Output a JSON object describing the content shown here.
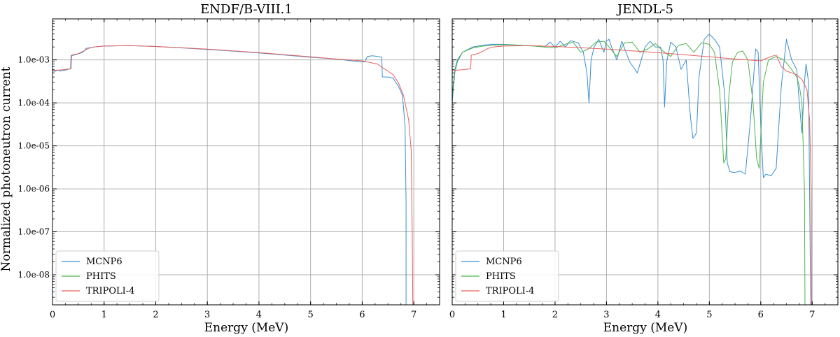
{
  "figure": {
    "ylabel": "Normalized photoneutron current",
    "xlabel": "Energy (MeV)"
  },
  "chart_data": [
    {
      "type": "line",
      "title": "ENDF/B-VIII.1",
      "xlabel": "Energy (MeV)",
      "ylabel": "Normalized photoneutron current",
      "xlim": [
        0,
        7.5
      ],
      "ylim": [
        2e-09,
        0.009
      ],
      "yscale": "log",
      "grid": true,
      "legend_position": "bottom-left",
      "xticks": [
        0,
        1,
        2,
        3,
        4,
        5,
        6,
        7
      ],
      "xtick_labels": [
        "0",
        "1",
        "2",
        "3",
        "4",
        "5",
        "6",
        "7"
      ],
      "yticks": [
        1e-08,
        1e-07,
        1e-06,
        1e-05,
        0.0001,
        0.001
      ],
      "ytick_labels": [
        "1.0e-08",
        "1.0e-07",
        "1.0e-06",
        "1.0e-05",
        "1.0e-04",
        "1.0e-03"
      ],
      "series": [
        {
          "name": "MCNP6",
          "color": "#3a8fd0",
          "x": [
            0,
            0.05,
            0.1,
            0.15,
            0.2,
            0.25,
            0.3,
            0.35,
            0.36,
            0.45,
            0.55,
            0.6,
            0.65,
            0.8,
            1.0,
            1.5,
            2.0,
            2.5,
            3.0,
            3.5,
            4.0,
            4.5,
            5.0,
            5.5,
            5.95,
            6.05,
            6.1,
            6.2,
            6.3,
            6.38,
            6.39,
            6.5,
            6.6,
            6.65,
            6.7,
            6.78,
            6.83,
            6.85,
            6.85
          ],
          "y": [
            0.00056,
            0.00054,
            0.00058,
            0.00055,
            0.00057,
            0.00058,
            0.0006,
            0.00062,
            0.00125,
            0.00132,
            0.00145,
            0.00155,
            0.00185,
            0.002,
            0.0021,
            0.00215,
            0.00205,
            0.0019,
            0.00175,
            0.0016,
            0.00145,
            0.0013,
            0.00115,
            0.00105,
            0.0009,
            0.0009,
            0.0012,
            0.00125,
            0.0012,
            0.00115,
            0.0004,
            0.0004,
            0.00038,
            0.0003,
            0.00025,
            0.00015,
            3e-05,
            5e-07,
            2e-09
          ]
        },
        {
          "name": "PHITS",
          "color": "#4db34d",
          "x": [],
          "y": []
        },
        {
          "name": "TRIPOLI-4",
          "color": "#e8605f",
          "x": [
            0,
            0.1,
            0.2,
            0.3,
            0.36,
            0.37,
            0.5,
            0.6,
            0.7,
            0.8,
            1.0,
            1.5,
            2.0,
            2.5,
            3.0,
            3.5,
            4.0,
            4.5,
            5.0,
            5.5,
            6.0,
            6.3,
            6.4,
            6.5,
            6.6,
            6.7,
            6.8,
            6.9,
            6.95,
            6.97,
            6.98
          ],
          "y": [
            0.00057,
            0.00058,
            0.00059,
            0.00061,
            0.00062,
            0.0013,
            0.0014,
            0.0016,
            0.00185,
            0.002,
            0.0021,
            0.00215,
            0.00205,
            0.00192,
            0.00178,
            0.00162,
            0.00148,
            0.00132,
            0.00118,
            0.00105,
            0.00095,
            0.0008,
            0.00065,
            0.00055,
            0.00045,
            0.0003,
            0.00015,
            4e-05,
            8e-06,
            1e-07,
            2e-09
          ]
        }
      ]
    },
    {
      "type": "line",
      "title": "JENDL-5",
      "xlabel": "Energy (MeV)",
      "ylabel": "",
      "xlim": [
        0,
        7.5
      ],
      "ylim": [
        2e-09,
        0.009
      ],
      "yscale": "log",
      "grid": true,
      "legend_position": "bottom-left",
      "xticks": [
        0,
        1,
        2,
        3,
        4,
        5,
        6,
        7
      ],
      "xtick_labels": [
        "0",
        "1",
        "2",
        "3",
        "4",
        "5",
        "6",
        "7"
      ],
      "yticks": [
        1e-08,
        1e-07,
        1e-06,
        1e-05,
        0.0001,
        0.001
      ],
      "ytick_labels": [
        "",
        "",
        "",
        "",
        "",
        ""
      ],
      "series": [
        {
          "name": "MCNP6",
          "color": "#3a8fd0",
          "x": [
            0,
            0.05,
            0.1,
            0.2,
            0.4,
            0.6,
            0.8,
            1.0,
            1.3,
            1.6,
            1.8,
            1.9,
            2.0,
            2.1,
            2.2,
            2.3,
            2.45,
            2.55,
            2.62,
            2.66,
            2.7,
            2.76,
            2.85,
            2.95,
            3.0,
            3.05,
            3.1,
            3.2,
            3.3,
            3.45,
            3.6,
            3.75,
            3.85,
            3.95,
            4.05,
            4.1,
            4.13,
            4.17,
            4.25,
            4.35,
            4.45,
            4.55,
            4.63,
            4.68,
            4.7,
            4.75,
            4.8,
            4.9,
            5.0,
            5.1,
            5.2,
            5.3,
            5.35,
            5.4,
            5.5,
            5.6,
            5.7,
            5.8,
            5.9,
            5.95,
            6.0,
            6.05,
            6.1,
            6.2,
            6.3,
            6.4,
            6.5,
            6.6,
            6.7,
            6.75,
            6.8,
            6.85,
            6.88,
            6.93,
            6.97
          ],
          "y": [
            0.0001,
            0.0005,
            0.0009,
            0.0015,
            0.002,
            0.0022,
            0.0023,
            0.0023,
            0.0022,
            0.0021,
            0.002,
            0.0026,
            0.002,
            0.0027,
            0.002,
            0.0028,
            0.0025,
            0.0015,
            0.0005,
            0.0001,
            0.001,
            0.002,
            0.003,
            0.0015,
            0.0028,
            0.003,
            0.002,
            0.001,
            0.0027,
            0.0009,
            0.0005,
            0.002,
            0.0027,
            0.002,
            0.002,
            0.001,
            8e-05,
            0.0009,
            0.0026,
            0.002,
            0.0006,
            0.001,
            5e-05,
            1.5e-05,
            1.6e-05,
            2e-05,
            0.0004,
            0.003,
            0.004,
            0.003,
            0.002,
            0.00015,
            4e-06,
            2.5e-06,
            2.4e-06,
            2.6e-06,
            2.2e-06,
            4e-05,
            0.0018,
            0.0015,
            3e-05,
            1.8e-06,
            2.2e-06,
            2e-06,
            3e-06,
            0.00025,
            0.003,
            0.001,
            0.0006,
            0.0001,
            2e-05,
            0.0003,
            0.0008,
            0.0003,
            2e-09
          ]
        },
        {
          "name": "PHITS",
          "color": "#4db34d",
          "x": [
            0,
            0.05,
            0.1,
            0.2,
            0.4,
            0.6,
            0.8,
            1.0,
            1.3,
            1.6,
            1.8,
            2.0,
            2.2,
            2.35,
            2.5,
            2.65,
            2.8,
            2.95,
            3.05,
            3.2,
            3.35,
            3.5,
            3.65,
            3.8,
            3.95,
            4.1,
            4.25,
            4.4,
            4.55,
            4.7,
            4.85,
            5.0,
            5.1,
            5.2,
            5.28,
            5.32,
            5.38,
            5.45,
            5.55,
            5.65,
            5.75,
            5.85,
            5.92,
            5.97,
            6.05,
            6.15,
            6.3,
            6.45,
            6.6,
            6.7,
            6.75,
            6.8,
            6.85,
            6.86
          ],
          "y": [
            0.00015,
            0.0006,
            0.001,
            0.0015,
            0.0019,
            0.0021,
            0.0022,
            0.00225,
            0.0022,
            0.0021,
            0.002,
            0.0019,
            0.0023,
            0.0026,
            0.0015,
            0.0018,
            0.0026,
            0.0027,
            0.002,
            0.0012,
            0.0025,
            0.0026,
            0.0015,
            0.0018,
            0.0024,
            0.0016,
            0.0012,
            0.0022,
            0.0024,
            0.0015,
            0.0025,
            0.0023,
            0.0015,
            0.0002,
            4e-06,
            5e-06,
            0.00015,
            0.0009,
            0.0015,
            0.0016,
            0.001,
            0.0001,
            5e-06,
            3e-06,
            0.0003,
            0.001,
            0.0012,
            0.001,
            0.0006,
            0.0004,
            0.00025,
            0.0001,
            1e-06,
            2e-09
          ]
        },
        {
          "name": "TRIPOLI-4",
          "color": "#e8605f",
          "x": [
            0,
            0.1,
            0.2,
            0.3,
            0.36,
            0.37,
            0.5,
            0.6,
            0.7,
            0.8,
            1.0,
            1.5,
            2.0,
            2.5,
            3.0,
            3.5,
            4.0,
            4.5,
            5.0,
            5.5,
            6.0,
            6.2,
            6.3,
            6.4,
            6.5,
            6.6,
            6.7,
            6.8,
            6.9,
            6.95,
            6.98,
            6.99
          ],
          "y": [
            0.00057,
            0.00058,
            0.00059,
            0.00061,
            0.00062,
            0.0013,
            0.0014,
            0.0016,
            0.00185,
            0.002,
            0.0021,
            0.00215,
            0.00205,
            0.00192,
            0.00178,
            0.00162,
            0.00148,
            0.00132,
            0.00118,
            0.00105,
            0.00095,
            0.0012,
            0.0013,
            0.0007,
            0.00055,
            0.0005,
            0.00045,
            0.00035,
            0.0002,
            4e-05,
            1e-06,
            2e-09
          ]
        }
      ]
    }
  ]
}
